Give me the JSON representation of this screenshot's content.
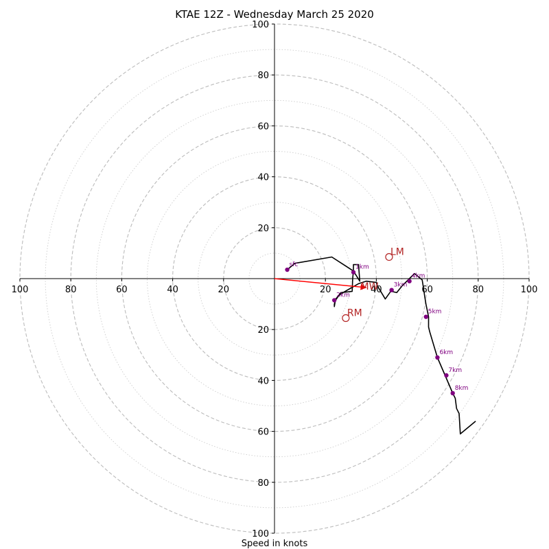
{
  "chart_data": {
    "type": "hodograph",
    "title": "KTAE 12Z - Wednesday March 25 2020",
    "xlabel": "Speed in knots",
    "ring_max": 100,
    "ring_major_step": 20,
    "ring_minor_step": 10,
    "grid": true,
    "axis_ticks": {
      "x_left": [
        "100",
        "80",
        "60",
        "40",
        "20"
      ],
      "x_right": [
        "20",
        "40",
        "60",
        "80",
        "100"
      ],
      "y_up": [
        "20",
        "40",
        "60",
        "80",
        "100"
      ],
      "y_down": [
        "20",
        "40",
        "60",
        "80",
        "100"
      ]
    },
    "colors": {
      "hodograph_line": "#000000",
      "height_marker": "#800080",
      "storm_motion": "#b22222",
      "mean_wind_vector": "#ff0000",
      "grid": "#bbbbbb"
    },
    "hodograph": {
      "u": [
        5,
        8,
        22.5,
        31,
        33.5,
        33,
        31,
        31,
        30.7,
        30.5,
        26,
        24,
        23.5,
        23.5,
        24,
        26,
        33,
        36,
        40,
        40.5,
        43.5,
        46,
        46,
        48,
        50,
        53,
        55,
        58,
        58.5,
        59,
        59.5,
        60.5,
        60.5,
        61,
        64,
        67,
        70,
        71,
        71.5,
        72.5,
        73,
        79
      ],
      "v": [
        3.5,
        6,
        8.5,
        3,
        -1,
        5.5,
        5.5,
        3,
        0,
        -5,
        -5.5,
        -8.5,
        -10,
        -11,
        -8,
        -6,
        -2,
        -1,
        -1.5,
        -3,
        -8,
        -4.5,
        -5,
        -5.5,
        -3,
        0,
        2,
        -0.5,
        -3.5,
        -7,
        -10,
        -15,
        -19,
        -21,
        -31,
        -38,
        -45,
        -47,
        -51,
        -53,
        -61,
        -56
      ]
    },
    "height_markers": [
      {
        "label": "sfc",
        "u": 5,
        "v": 3.5
      },
      {
        "label": "1km",
        "u": 31,
        "v": 2.5
      },
      {
        "label": "2km",
        "u": 23.5,
        "v": -8.5
      },
      {
        "label": "3km",
        "u": 46,
        "v": -4.5
      },
      {
        "label": "4km",
        "u": 53,
        "v": -1
      },
      {
        "label": "5km",
        "u": 59.5,
        "v": -15
      },
      {
        "label": "6km",
        "u": 64,
        "v": -31
      },
      {
        "label": "7km",
        "u": 67.5,
        "v": -38
      },
      {
        "label": "8km",
        "u": 70,
        "v": -45
      }
    ],
    "storm_motion_markers": [
      {
        "label": "LM",
        "u": 45,
        "v": 8.5
      },
      {
        "label": "RM",
        "u": 28,
        "v": -15.5
      }
    ],
    "mean_wind": {
      "label": "MW",
      "u": 36,
      "v": -3.5
    }
  }
}
